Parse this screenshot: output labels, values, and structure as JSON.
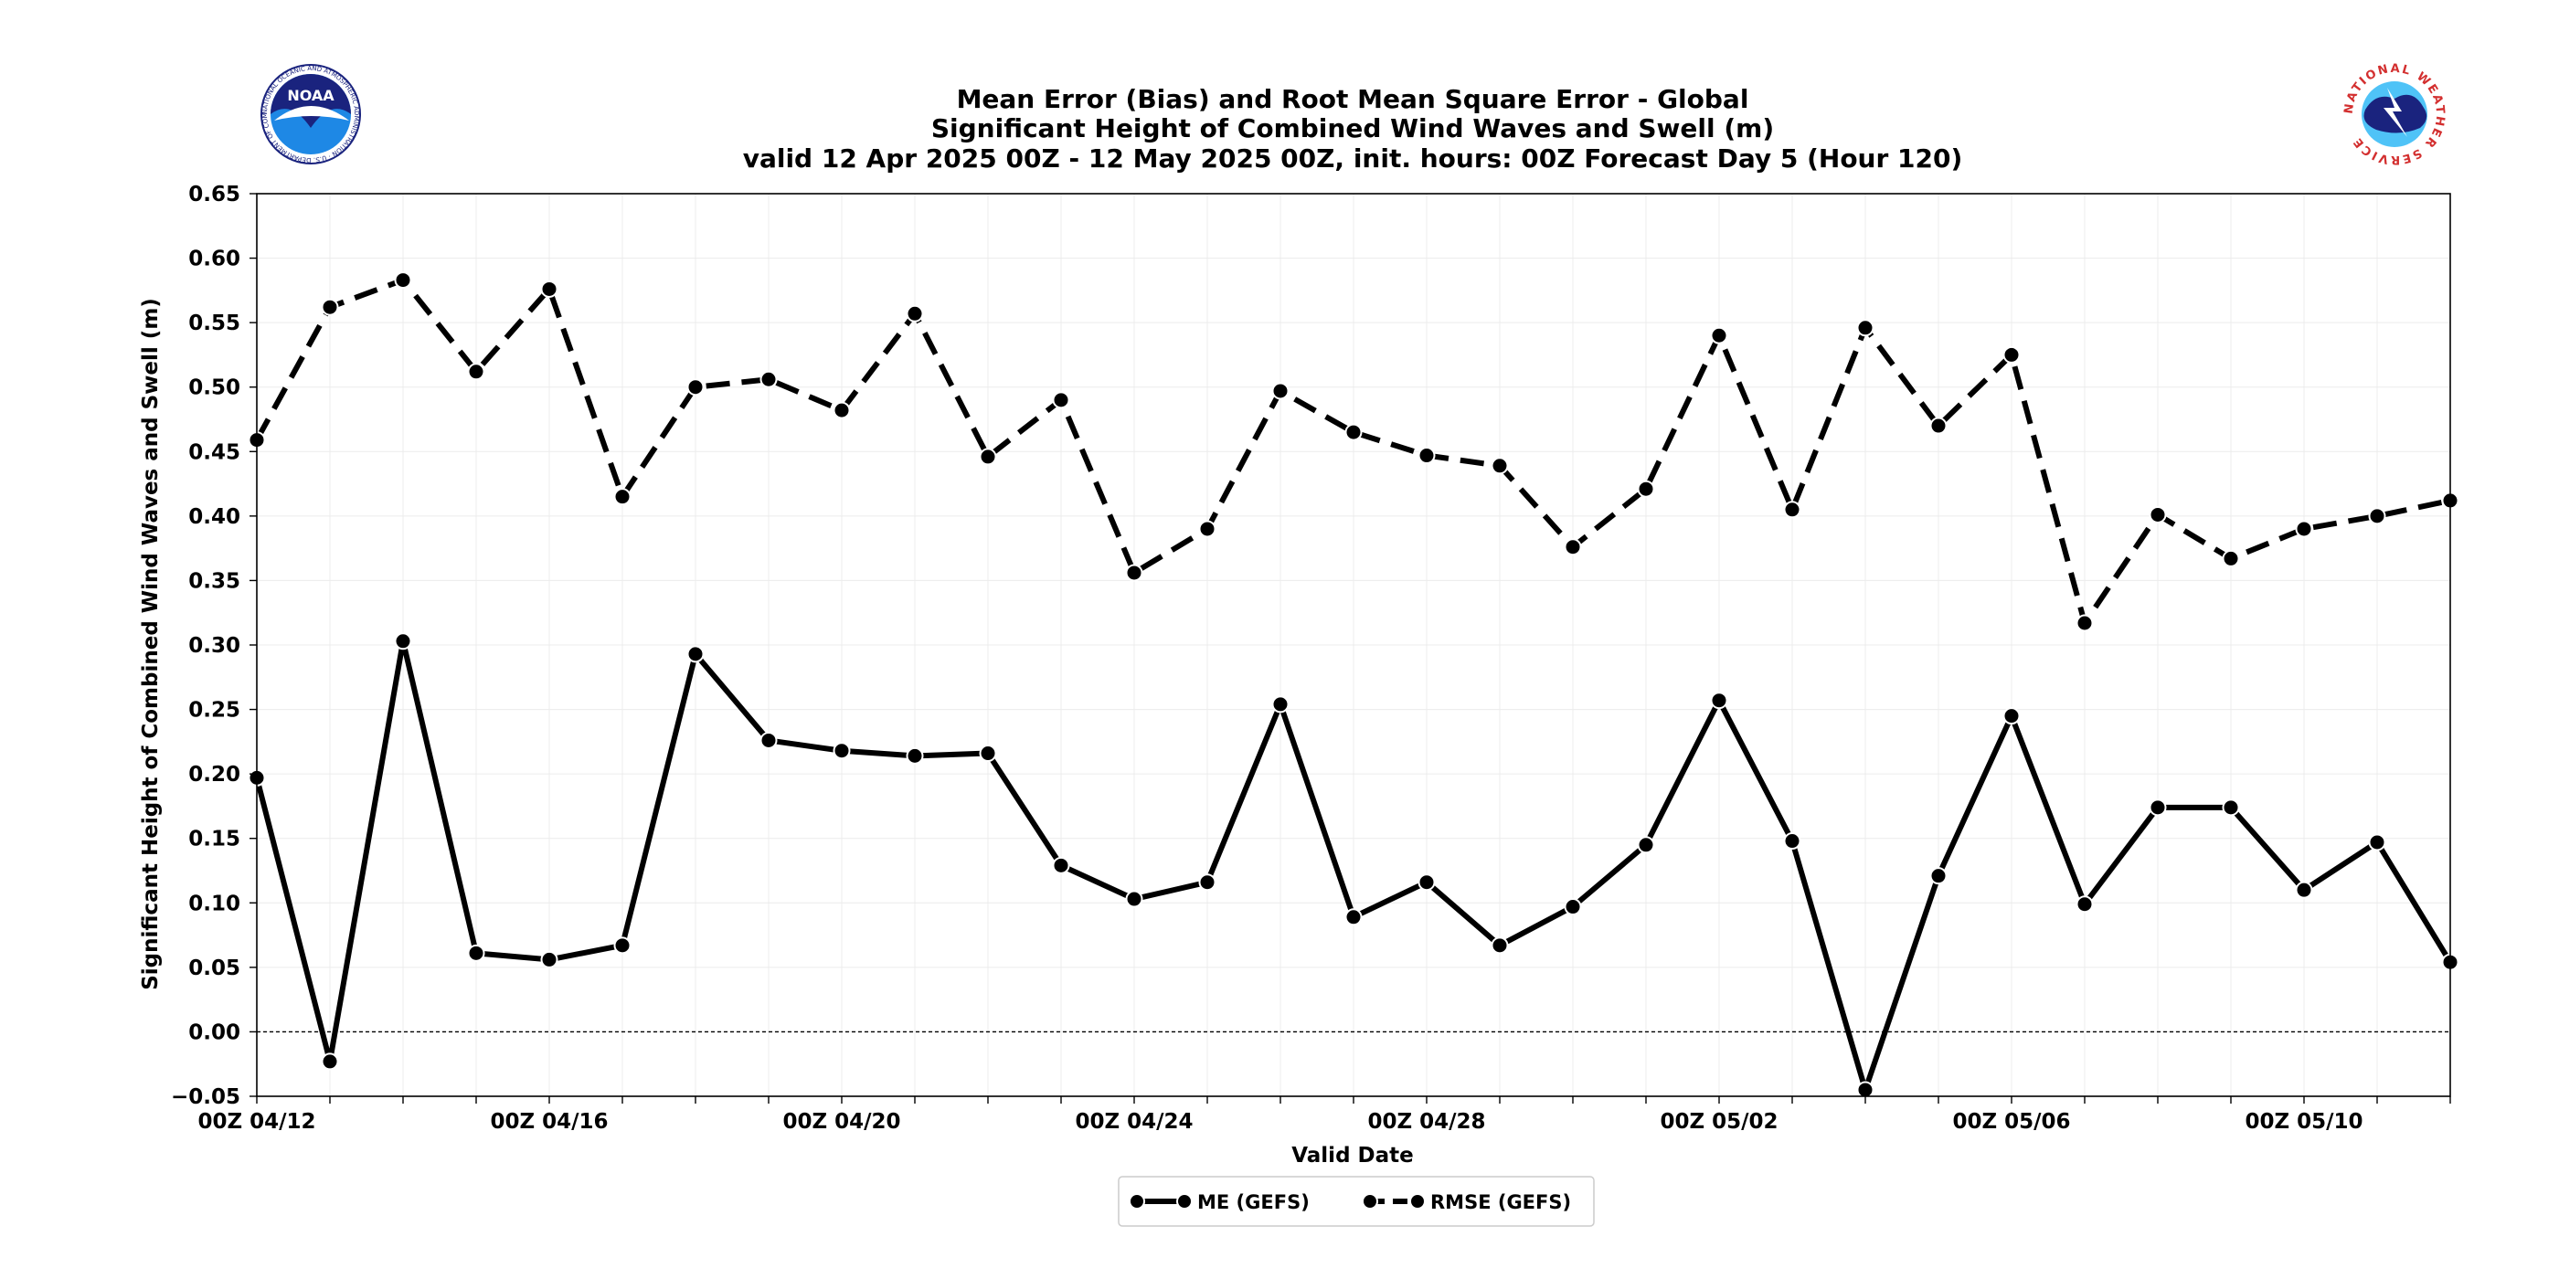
{
  "chart_data": {
    "type": "line",
    "title_lines": [
      "Mean Error (Bias) and Root Mean Square Error - Global",
      "Significant Height of Combined Wind Waves and Swell (m)",
      "valid 12 Apr 2025 00Z - 12 May 2025 00Z, init. hours: 00Z Forecast Day 5 (Hour 120)"
    ],
    "xlabel": "Valid Date",
    "ylabel": "Significant Height of Combined Wind Waves and Swell (m)",
    "ylim": [
      -0.05,
      0.65
    ],
    "yticks": [
      "−0.05",
      "0.00",
      "0.05",
      "0.10",
      "0.15",
      "0.20",
      "0.25",
      "0.30",
      "0.35",
      "0.40",
      "0.45",
      "0.50",
      "0.55",
      "0.60",
      "0.65"
    ],
    "x": [
      "2025-04-12",
      "2025-04-13",
      "2025-04-14",
      "2025-04-15",
      "2025-04-16",
      "2025-04-17",
      "2025-04-18",
      "2025-04-19",
      "2025-04-20",
      "2025-04-21",
      "2025-04-22",
      "2025-04-23",
      "2025-04-24",
      "2025-04-25",
      "2025-04-26",
      "2025-04-27",
      "2025-04-28",
      "2025-04-29",
      "2025-04-30",
      "2025-05-01",
      "2025-05-02",
      "2025-05-03",
      "2025-05-04",
      "2025-05-05",
      "2025-05-06",
      "2025-05-07",
      "2025-05-08",
      "2025-05-09",
      "2025-05-10",
      "2025-05-11",
      "2025-05-12"
    ],
    "xticks": [
      "00Z 04/12",
      "00Z 04/16",
      "00Z 04/20",
      "00Z 04/24",
      "00Z 04/28",
      "00Z 05/02",
      "00Z 05/06",
      "00Z 05/10"
    ],
    "grid": true,
    "zero_line": true,
    "legend_position": "bottom-center",
    "series": [
      {
        "name": "ME (GEFS)",
        "style": "solid",
        "color": "#000000",
        "values": [
          0.197,
          -0.023,
          0.303,
          0.061,
          0.056,
          0.067,
          0.293,
          0.226,
          0.218,
          0.214,
          0.216,
          0.129,
          0.103,
          0.116,
          0.254,
          0.089,
          0.116,
          0.067,
          0.097,
          0.145,
          0.257,
          0.148,
          -0.045,
          0.121,
          0.245,
          0.099,
          0.174,
          0.174,
          0.11,
          0.147,
          0.054
        ]
      },
      {
        "name": "RMSE (GEFS)",
        "style": "dashed",
        "color": "#000000",
        "values": [
          0.459,
          0.562,
          0.583,
          0.512,
          0.576,
          0.415,
          0.5,
          0.506,
          0.482,
          0.557,
          0.446,
          0.49,
          0.356,
          0.39,
          0.497,
          0.465,
          0.447,
          0.439,
          0.376,
          0.421,
          0.54,
          0.405,
          0.546,
          0.47,
          0.525,
          0.317,
          0.401,
          0.367,
          0.39,
          0.4,
          0.412
        ]
      }
    ]
  },
  "logos": {
    "left": {
      "icon": "noaa-logo-icon",
      "text": "NOAA",
      "ring_text": "NATIONAL OCEANIC AND ATMOSPHERIC ADMINISTRATION · U.S. DEPARTMENT OF COMMERCE",
      "colors": [
        "#1a237e",
        "#1e88e5"
      ]
    },
    "right": {
      "icon": "nws-logo-icon",
      "ring_text": "NATIONAL WEATHER SERVICE",
      "colors": [
        "#d32f2f",
        "#1565c0"
      ]
    }
  }
}
